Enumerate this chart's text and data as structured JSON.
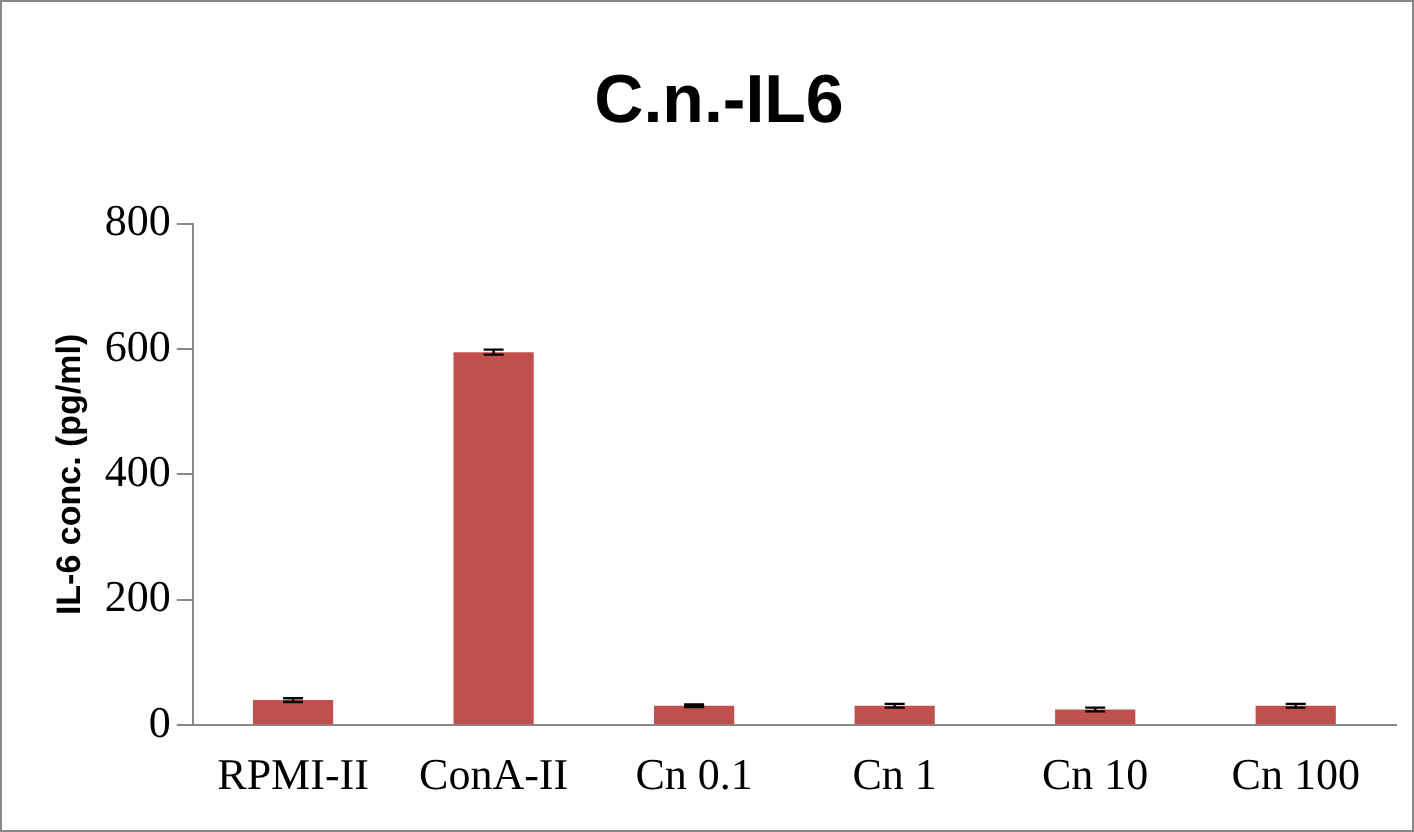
{
  "chart_data": {
    "type": "bar",
    "title": "C.n.-IL6",
    "ylabel": "IL-6 conc. (pg/ml)",
    "categories": [
      "RPMI-II",
      "ConA-II",
      "Cn 0.1",
      "Cn 1",
      "Cn 10",
      "Cn 100"
    ],
    "values": [
      40,
      595,
      31,
      31,
      25,
      31
    ],
    "errors": [
      3,
      4,
      2,
      3,
      3,
      3
    ],
    "color": "#c0504d",
    "ylim": [
      0,
      800
    ],
    "yticks": [
      0,
      200,
      400,
      600,
      800
    ],
    "grid": false,
    "legend": false
  }
}
